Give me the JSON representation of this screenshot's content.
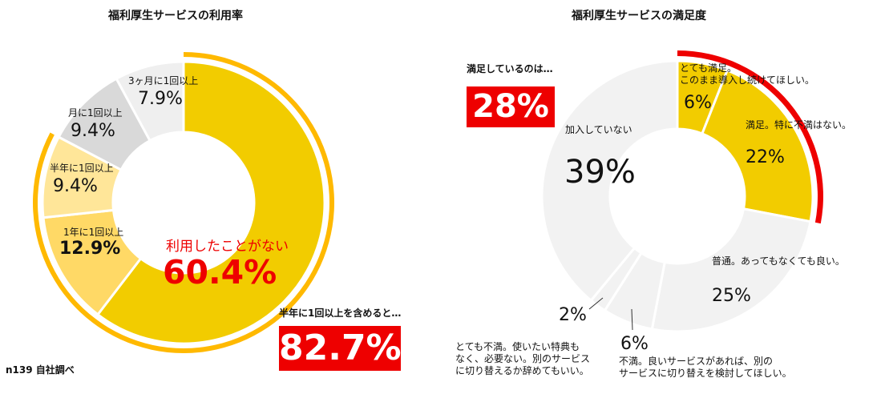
{
  "chart_data": [
    {
      "type": "pie",
      "title": "福利厚生サービスの利用率",
      "slices": [
        {
          "label": "利用したことがない",
          "value": 60.4,
          "value_label": "60.4%",
          "color": "#F2CC00"
        },
        {
          "label": "1年に1回以上",
          "value": 12.9,
          "value_label": "12.9%",
          "color": "#FFD966"
        },
        {
          "label": "半年に1回以上",
          "value": 9.4,
          "value_label": "9.4%",
          "color": "#FFE699"
        },
        {
          "label": "月に1回以上",
          "value": 9.4,
          "value_label": "9.4%",
          "color": "#D9D9D9"
        },
        {
          "label": "3ヶ月に1回以上",
          "value": 7.9,
          "value_label": "7.9%",
          "color": "#EFEFEF"
        }
      ],
      "highlight_label": "半年に1回以上を含めると…",
      "highlight_value": "82.7%",
      "highlight_color": "#FFB900",
      "source_note": "n139 自社調べ"
    },
    {
      "type": "pie",
      "title": "福利厚生サービスの満足度",
      "slices": [
        {
          "label": "とても満足。\nこのまま導入し続けてほしい。",
          "value": 6,
          "value_label": "6%",
          "color": "#F2CC00"
        },
        {
          "label": "満足。特に不満はない。",
          "value": 22,
          "value_label": "22%",
          "color": "#F2CC00"
        },
        {
          "label": "普通。あってもなくても良い。",
          "value": 25,
          "value_label": "25%",
          "color": "#F2F2F2"
        },
        {
          "label": "不満。良いサービスがあれば、別の\nサービスに切り替えを検討してほしい。",
          "value": 6,
          "value_label": "6%",
          "color": "#F2F2F2"
        },
        {
          "label": "とても不満。使いたい特典も\nなく、必要ない。別のサービス\nに切り替えるか辞めてもいい。",
          "value": 2,
          "value_label": "2%",
          "color": "#F2F2F2"
        },
        {
          "label": "加入していない",
          "value": 39,
          "value_label": "39%",
          "color": "#F2F2F2"
        }
      ],
      "highlight_label": "満足しているのは…",
      "highlight_value": "28%",
      "highlight_color": "#EE0000"
    }
  ]
}
